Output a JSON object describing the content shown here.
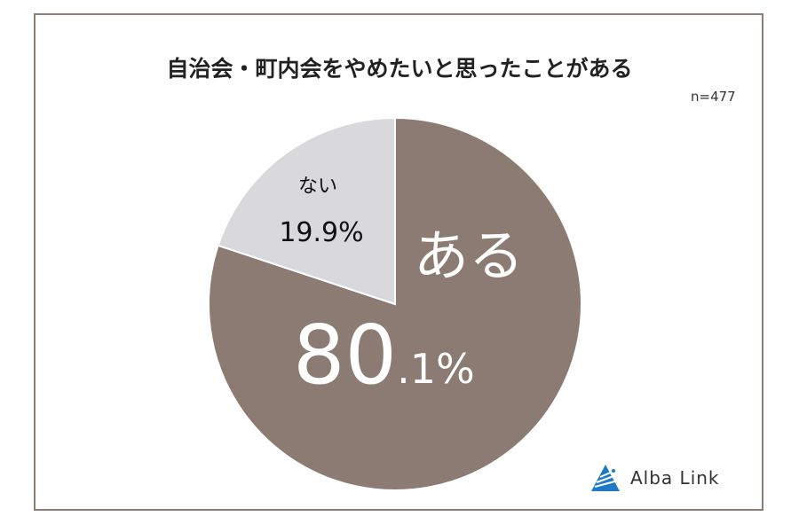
{
  "chart_data": {
    "type": "pie",
    "title": "自治会・町内会をやめたいと思ったことがある",
    "annotation": "n=477",
    "slices": [
      {
        "label": "ある",
        "value": 80.1,
        "display": "80",
        "display_decimal": ".1%",
        "color": "#8b7b72",
        "text_color": "#ffffff"
      },
      {
        "label": "ない",
        "value": 19.9,
        "display": "19.9%",
        "color": "#d9d9db",
        "text_color": "#111111"
      }
    ],
    "start": "top",
    "direction": "clockwise",
    "legend": "none"
  },
  "logo": {
    "text": "Alba Link",
    "color": "#1e7ac8"
  }
}
